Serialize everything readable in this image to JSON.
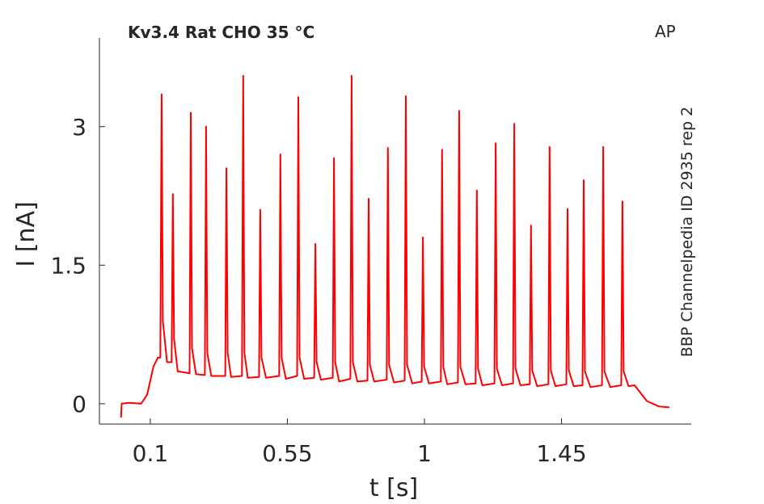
{
  "chart_data": {
    "type": "line",
    "title": "Kv3.4  Rat  CHO  35 °C",
    "annotations": [
      "AP",
      "BBP Channelpedia ID 2935 rep 2"
    ],
    "xlabel": "t [s]",
    "ylabel": "I [nA]",
    "xlim": [
      -0.067,
      1.876
    ],
    "ylim": [
      -0.22,
      3.96
    ],
    "xticks": [
      0.1,
      0.55,
      1,
      1.45
    ],
    "yticks": [
      0,
      1.5,
      3
    ],
    "series": [
      {
        "color": "#ff0000",
        "x": [
          0.004,
          0.006,
          0.03,
          0.07,
          0.09,
          0.11,
          0.125,
          0.133,
          0.137,
          0.141,
          0.155,
          0.17,
          0.174,
          0.178,
          0.19,
          0.229,
          0.233,
          0.237,
          0.25,
          0.279,
          0.283,
          0.287,
          0.3,
          0.346,
          0.35,
          0.354,
          0.365,
          0.401,
          0.405,
          0.409,
          0.42,
          0.457,
          0.461,
          0.465,
          0.48,
          0.523,
          0.527,
          0.531,
          0.545,
          0.582,
          0.586,
          0.59,
          0.605,
          0.638,
          0.642,
          0.646,
          0.66,
          0.699,
          0.703,
          0.707,
          0.72,
          0.757,
          0.761,
          0.765,
          0.78,
          0.813,
          0.817,
          0.821,
          0.835,
          0.876,
          0.88,
          0.884,
          0.9,
          0.935,
          0.939,
          0.943,
          0.96,
          0.991,
          0.995,
          0.999,
          1.015,
          1.054,
          1.058,
          1.062,
          1.075,
          1.11,
          1.114,
          1.118,
          1.135,
          1.168,
          1.172,
          1.176,
          1.19,
          1.23,
          1.234,
          1.238,
          1.255,
          1.291,
          1.295,
          1.299,
          1.315,
          1.346,
          1.35,
          1.354,
          1.37,
          1.407,
          1.411,
          1.415,
          1.43,
          1.466,
          1.47,
          1.474,
          1.49,
          1.519,
          1.523,
          1.527,
          1.545,
          1.583,
          1.587,
          1.591,
          1.61,
          1.646,
          1.65,
          1.654,
          1.67,
          1.69,
          1.73,
          1.77,
          1.804
        ],
        "values": [
          -0.15,
          0,
          0.01,
          0,
          0.1,
          0.4,
          0.5,
          0.5,
          3.35,
          0.9,
          0.45,
          0.45,
          2.27,
          0.7,
          0.35,
          0.33,
          3.15,
          0.6,
          0.32,
          0.31,
          3.0,
          0.55,
          0.3,
          0.3,
          2.55,
          0.55,
          0.29,
          0.3,
          3.55,
          0.55,
          0.28,
          0.29,
          2.1,
          0.5,
          0.28,
          0.3,
          2.7,
          0.5,
          0.27,
          0.3,
          3.32,
          0.5,
          0.27,
          0.28,
          1.73,
          0.45,
          0.26,
          0.28,
          2.66,
          0.45,
          0.24,
          0.27,
          3.55,
          0.45,
          0.24,
          0.25,
          2.22,
          0.42,
          0.24,
          0.26,
          2.77,
          0.42,
          0.23,
          0.25,
          3.33,
          0.42,
          0.22,
          0.24,
          1.8,
          0.4,
          0.22,
          0.24,
          2.75,
          0.4,
          0.21,
          0.23,
          3.17,
          0.4,
          0.21,
          0.22,
          2.31,
          0.38,
          0.2,
          0.22,
          2.82,
          0.38,
          0.2,
          0.22,
          3.03,
          0.38,
          0.2,
          0.21,
          1.93,
          0.36,
          0.19,
          0.21,
          2.78,
          0.36,
          0.19,
          0.21,
          2.11,
          0.36,
          0.19,
          0.2,
          2.42,
          0.35,
          0.18,
          0.2,
          2.78,
          0.35,
          0.18,
          0.2,
          2.19,
          0.35,
          0.19,
          0.2,
          0.03,
          -0.03,
          -0.04
        ]
      }
    ]
  }
}
